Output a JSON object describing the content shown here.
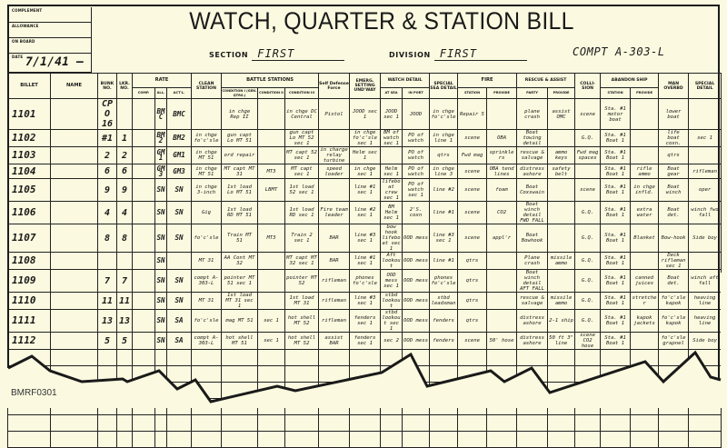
{
  "title": "WATCH, QUARTER & STATION BILL",
  "info_box": {
    "complement_label": "COMPLEMENT",
    "allowance_label": "ALLOWANCE",
    "on_board_label": "ON BOARD",
    "date_label": "DATE",
    "date_value": "7/1/41 —"
  },
  "section": {
    "label": "SECTION",
    "value": "FIRST"
  },
  "division": {
    "label": "DIVISION",
    "value": "FIRST"
  },
  "compartment": "COMPT A-303-L",
  "headers": {
    "billet": "BILLET",
    "name": "NAME",
    "bunk": "BUNK NO.",
    "locker": "LKR. NO.",
    "rate": "RATE",
    "rate_comp": "COMP.",
    "rate_all": "ALL.",
    "rate_act": "ACT'L.",
    "clean": "CLEAN STATION",
    "battle": "BATTLE STATIONS",
    "cond1": "CONDITION I (GEN. QTRS.)",
    "cond2": "CONDITION II",
    "cond3": "CONDITION III",
    "self_defense": "Self Defense Force",
    "emerg": "EMERG. SETTING UND'WAY",
    "watch": "WATCH DETAIL",
    "at_sea": "AT SEA",
    "in_port": "IN PORT",
    "special_sea": "SPECIAL SEA DETAIL",
    "fire": "FIRE",
    "fire_station": "STATION",
    "fire_provide": "PROVIDE",
    "rescue": "RESCUE & ASSIST",
    "rescue_party": "PARTY",
    "rescue_provide": "PROVIDE",
    "collision": "COLLI-SION",
    "abandon": "ABANDON SHIP",
    "abandon_station": "STATION",
    "abandon_provide": "PROVIDE",
    "man_overboard": "MAN OVERBD",
    "special_detail": "SPECIAL DETAIL"
  },
  "rows": [
    [
      "1101",
      "",
      "CPO 16",
      "",
      "",
      "BMC",
      "BMC",
      "",
      "in chge Rep II",
      "",
      "in chge DC Central",
      "Pistol",
      "JOOD sec 1",
      "JOOD sec 1",
      "JOOD",
      "in chge fo'c'sle",
      "Repair 5",
      "",
      "plane crash",
      "assist OMC",
      "scene",
      "Sta. #1 motor boat",
      "",
      "lower boat",
      ""
    ],
    [
      "1102",
      "",
      "#1",
      "1",
      "",
      "BM2",
      "BM2",
      "in chge fo'c'sle",
      "gun capt Lo MT 51",
      "",
      "gun capt Lo MT 52 sec 1",
      "",
      "in chge fo'c'sle sec 1",
      "BM of watch sec 1",
      "PO of watch",
      "in chge line 1",
      "scene",
      "OBA",
      "Boat towing detail",
      "",
      "G.Q.",
      "Sta. #1 Boat 1",
      "",
      "life boat coxn.",
      "sec 1"
    ],
    [
      "1103",
      "",
      "2",
      "2",
      "",
      "GM1",
      "GM1",
      "in chge MT 51",
      "ord repair",
      "",
      "MT capt 52 sec 1",
      "in charge relay turbine",
      "Helm sec 1",
      "",
      "PO of watch",
      "qtrs",
      "Fwd mag",
      "sprinklers",
      "rescue & salvage",
      "ammo keys",
      "Fwd mag spaces",
      "Sta. #1 Boat 1",
      "",
      "qtrs",
      ""
    ],
    [
      "1104",
      "",
      "6",
      "6",
      "",
      "GM3",
      "GM3",
      "in chge MT 51",
      "MT capt MT 31",
      "MT3",
      "MT capt sec 1",
      "speed loader",
      "in chge sec 1",
      "Helm sec 1",
      "PO of watch",
      "in chge line 3",
      "scene",
      "OBA tend lines",
      "distress ashore",
      "safety belt",
      "",
      "Sta. #1 Boat 1",
      "rifle ammo",
      "Boat gear",
      "rifleman"
    ],
    [
      "1105",
      "",
      "9",
      "9",
      "",
      "SN",
      "SN",
      "in chge 3-inch",
      "1st load Lo MT 51",
      "LBMT",
      "1st load 52 sec 1",
      "",
      "line #1 sec 1",
      "lifeboat crew sec 1",
      "PO of watch sec 1",
      "line #2",
      "scene",
      "foam",
      "Boat Coxswain",
      "",
      "scene",
      "Sta. #1 Boat 1",
      "in chge infld.",
      "Boat winch",
      "oper"
    ],
    [
      "1106",
      "",
      "4",
      "4",
      "",
      "SN",
      "SN",
      "Gig",
      "1st load RD MT 51",
      "",
      "1st load RD sec 1",
      "Fire team leader",
      "line #2 sec 1",
      "BM Helm sec 1",
      "2'S. coxn",
      "line #1",
      "scene",
      "CO2",
      "Boat winch detail FWD FALL",
      "",
      "G.Q.",
      "Sta. #1 Boat 1",
      "extra water",
      "Boat det.",
      "winch fwd fall"
    ],
    [
      "1107",
      "",
      "8",
      "8",
      "",
      "SN",
      "SN",
      "fo'c'sle",
      "Train MT 51",
      "MT3",
      "Train 2 sec 1",
      "BAR",
      "line #3 sec 1",
      "bow hook lifeboat sec 1",
      "OOD mess",
      "line #3 sec 1",
      "scene",
      "appl'r",
      "Boat Bowhook",
      "",
      "G.Q.",
      "Sta. #1 Boat 1",
      "Blanket",
      "Bow-hook",
      "Side boy"
    ],
    [
      "1108",
      "",
      "",
      "",
      "",
      "SN",
      "",
      "MT 31",
      "AA Cont MT 32",
      "",
      "MT capt MT 32 sec 1",
      "BAR",
      "line #1 sec 1",
      "Aft lookout",
      "OOD mess",
      "line #1",
      "qtrs",
      "",
      "Plane crash",
      "missile ammo",
      "G.Q.",
      "Sta. #1 Boat 1",
      "",
      "Deck rifleman sec 1",
      ""
    ],
    [
      "1109",
      "",
      "7",
      "7",
      "",
      "SN",
      "SN",
      "compt A-303-L",
      "pointer MT 51 sec 1",
      "",
      "pointer MT 52",
      "rifleman",
      "phones fo'c'sle",
      "OOD mess sec 1",
      "OOD mess",
      "phones fo'c'sle",
      "qtrs",
      "",
      "Boat winch detail AFT FALL",
      "",
      "G.Q.",
      "Sta. #1 Boat 1",
      "canned juices",
      "Boat det.",
      "winch aft fall"
    ],
    [
      "1110",
      "",
      "11",
      "11",
      "",
      "SN",
      "SN",
      "MT 31",
      "1st load MT 31 sec 1",
      "",
      "1st load MT 31",
      "rifleman",
      "line #3 sec 1",
      "stbd lookout",
      "OOD mess",
      "stbd leadsman",
      "qtrs",
      "",
      "rescue & salvage",
      "missile ammo",
      "G.Q.",
      "Sta. #1 Boat 1",
      "stretcher",
      "fo'c'sle kapok",
      "heaving line"
    ],
    [
      "1111",
      "",
      "13",
      "13",
      "",
      "SN",
      "SA",
      "fo'c'sle",
      "mag MT 51",
      "sec 1",
      "hot shell MT 52",
      "rifleman",
      "fenders sec 1",
      "stbd lookout sec 1",
      "OOD mess",
      "fenders",
      "qtrs",
      "",
      "distress ashore",
      "2-1 ship",
      "G.Q.",
      "Sta. #1 Boat 1",
      "kapok jackets",
      "fo'c'sle kapok",
      "heaving line"
    ],
    [
      "1112",
      "",
      "5",
      "5",
      "",
      "SN",
      "SA",
      "compt A-303-L",
      "hot shell MT 51",
      "sec 1",
      "hot shell MT 52",
      "assist BAR",
      "fenders sec 1",
      "sec 2",
      "OOD mess",
      "fenders",
      "scene",
      "50' hose",
      "distress ashore",
      "50 ft 3\" line",
      "scene CO2 hose",
      "Sta. #1 Boat 1",
      "",
      "fo'c'sle grapnel",
      "Side boy"
    ]
  ],
  "footer_code": "BMRF0301",
  "colors": {
    "paper": "#fbf9df",
    "ink": "#1a1a1a"
  }
}
